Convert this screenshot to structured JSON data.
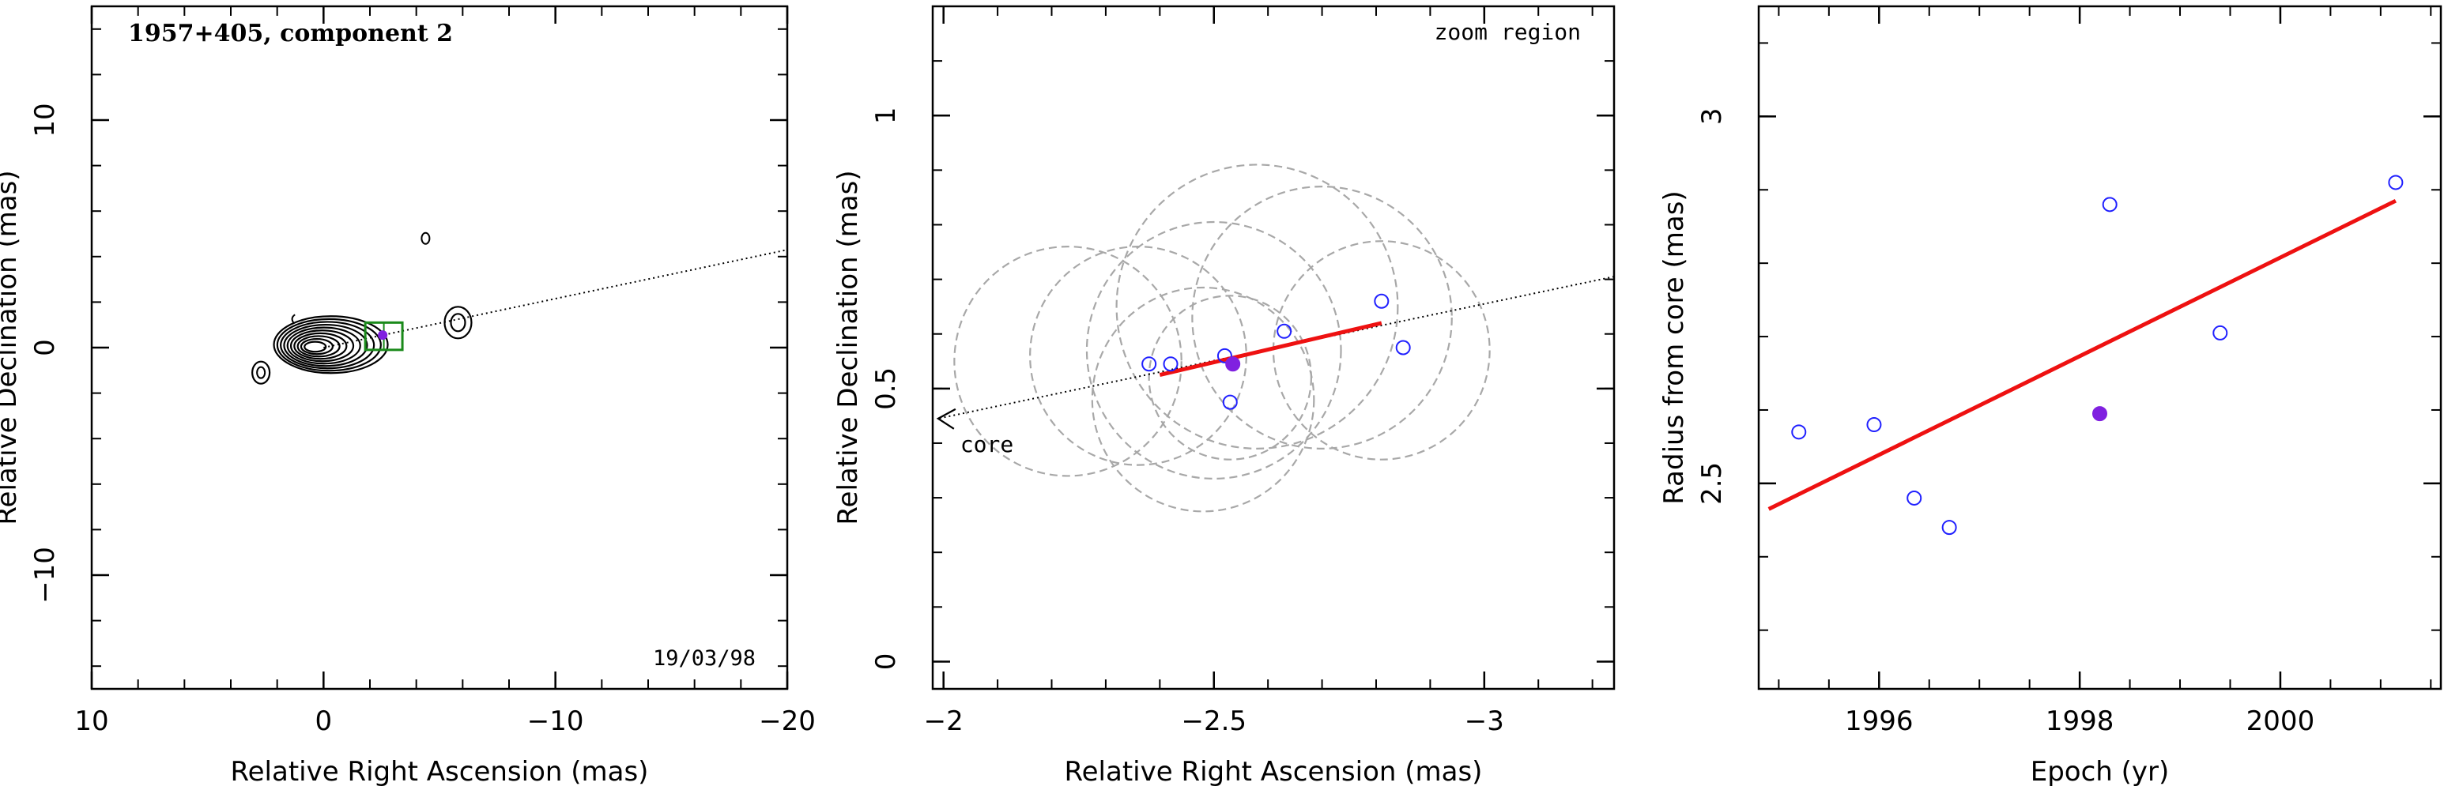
{
  "chart_data": [
    {
      "type": "scatter",
      "panel": "left",
      "title": "1957+405, component 2",
      "date_label": "19/03/98",
      "xlabel": "Relative Right Ascension (mas)",
      "ylabel": "Relative Declination (mas)",
      "xlim": [
        10,
        -20
      ],
      "ylim": [
        -15,
        15
      ],
      "x_ticks": [
        10,
        0,
        -10,
        -20
      ],
      "x_tick_labels": [
        "10",
        "0",
        "−10",
        "−20"
      ],
      "y_ticks": [
        -10,
        0,
        10
      ],
      "y_tick_labels": [
        "−10",
        "0",
        "10"
      ],
      "contour_map": true,
      "jet_direction_line": {
        "from": [
          0,
          0
        ],
        "to": [
          -20,
          4.3
        ],
        "style": "dotted"
      },
      "zoom_box": {
        "x": [
          -1.8,
          -3.4
        ],
        "y": [
          -0.1,
          1.1
        ],
        "color": "#1a8a1a"
      },
      "points": {
        "x": [
          -2.55
        ],
        "y": [
          0.55
        ],
        "color": "#8020e0"
      }
    },
    {
      "type": "scatter",
      "panel": "middle",
      "annotation": "zoom region",
      "core_label": "core",
      "xlabel": "Relative Right Ascension (mas)",
      "ylabel": "Relative Declination (mas)",
      "xlim": [
        -1.98,
        -3.24
      ],
      "ylim": [
        -0.05,
        1.2
      ],
      "x_ticks": [
        -2,
        -2.5,
        -3
      ],
      "x_tick_labels": [
        "−2",
        "−2.5",
        "−3"
      ],
      "y_ticks": [
        0,
        0.5,
        1
      ],
      "y_tick_labels": [
        "0",
        "0.5",
        "1"
      ],
      "epoch_points": {
        "x": [
          -2.38,
          -2.42,
          -2.52,
          -2.63,
          -2.81,
          -2.85,
          -2.53
        ],
        "y": [
          0.545,
          0.545,
          0.56,
          0.605,
          0.66,
          0.575,
          0.475
        ],
        "marker": "open-circle",
        "color": "#2020ff"
      },
      "highlight_point": {
        "x": -2.535,
        "y": 0.545,
        "marker": "filled-circle",
        "color": "#8020e0"
      },
      "fit_line": {
        "x": [
          -2.4,
          -2.81
        ],
        "y": [
          0.525,
          0.62
        ],
        "color": "#ee1111"
      },
      "direction_arrow": {
        "from": [
          -3.24,
          0.705
        ],
        "to": [
          -1.99,
          0.445
        ],
        "style": "dotted"
      },
      "beam_circles": [
        {
          "cx": -2.23,
          "cy": 0.55,
          "r": 0.21
        },
        {
          "cx": -2.36,
          "cy": 0.56,
          "r": 0.2
        },
        {
          "cx": -2.5,
          "cy": 0.57,
          "r": 0.235
        },
        {
          "cx": -2.58,
          "cy": 0.65,
          "r": 0.26
        },
        {
          "cx": -2.48,
          "cy": 0.48,
          "r": 0.205
        },
        {
          "cx": -2.7,
          "cy": 0.63,
          "r": 0.24
        },
        {
          "cx": -2.81,
          "cy": 0.57,
          "r": 0.2
        },
        {
          "cx": -2.53,
          "cy": 0.52,
          "r": 0.15
        }
      ]
    },
    {
      "type": "scatter",
      "panel": "right",
      "xlabel": "Epoch (yr)",
      "ylabel": "Radius from core (mas)",
      "xlim": [
        1994.8,
        2001.6
      ],
      "ylim": [
        2.22,
        3.15
      ],
      "x_ticks": [
        1996,
        1998,
        2000
      ],
      "x_tick_labels": [
        "1996",
        "1998",
        "2000"
      ],
      "y_ticks": [
        2.5,
        3
      ],
      "y_tick_labels": [
        "2.5",
        "3"
      ],
      "epoch_points": {
        "x": [
          1995.2,
          1995.95,
          1996.35,
          1996.7,
          1998.3,
          1999.4,
          2001.15
        ],
        "y": [
          2.57,
          2.58,
          2.48,
          2.44,
          2.88,
          2.705,
          2.91
        ],
        "marker": "open-circle",
        "color": "#2020ff"
      },
      "highlight_point": {
        "x": 1998.2,
        "y": 2.595,
        "marker": "filled-circle",
        "color": "#8020e0"
      },
      "fit_line": {
        "x": [
          1994.9,
          2001.15
        ],
        "y": [
          2.465,
          2.885
        ],
        "color": "#ee1111"
      }
    }
  ]
}
